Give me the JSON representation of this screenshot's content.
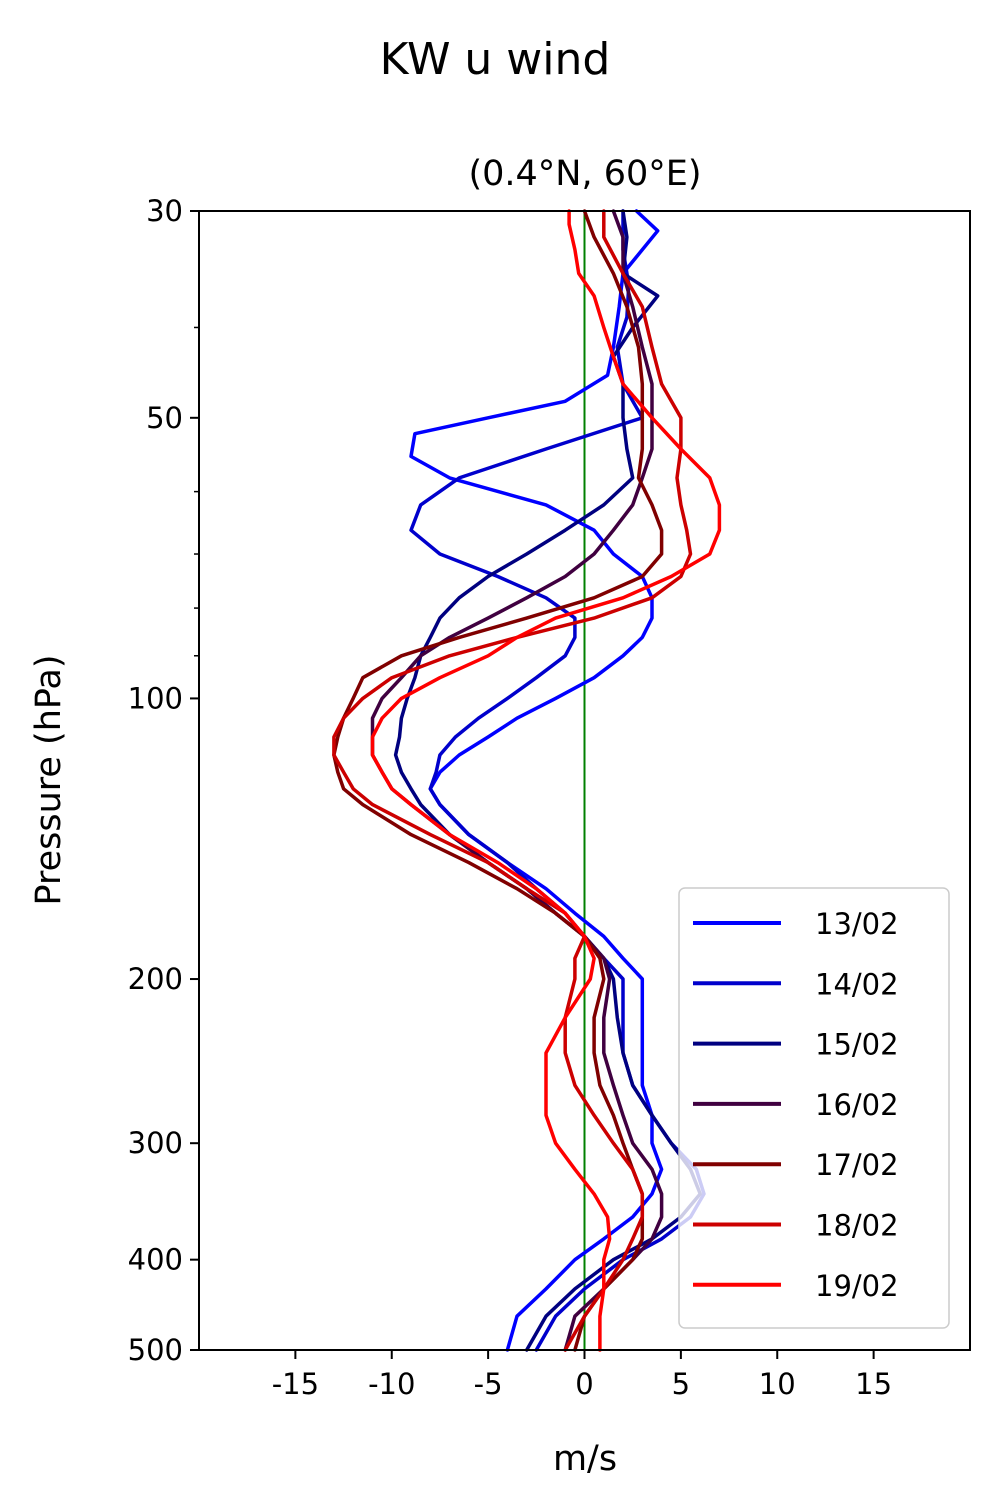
{
  "chart_data": {
    "type": "line",
    "title": "KW u wind",
    "subtitle": "(0.4°N, 60°E)",
    "xlabel": "m/s",
    "ylabel": "Pressure (hPa)",
    "xlim": [
      -20,
      20
    ],
    "ylim": [
      500,
      30
    ],
    "yscale": "log",
    "x_ticks": [
      -15,
      -10,
      -5,
      0,
      5,
      10,
      15
    ],
    "x_tick_labels": [
      "-15",
      "-10",
      "-5",
      "0",
      "5",
      "10",
      "15"
    ],
    "y_ticks": [
      30,
      50,
      100,
      200,
      300,
      400,
      500
    ],
    "y_tick_labels": [
      "30",
      "50",
      "100",
      "200",
      "300",
      "400",
      "500"
    ],
    "y_minor_ticks": [
      40,
      60,
      70,
      80,
      90
    ],
    "reference_line": {
      "x": 0,
      "color": "#008000"
    },
    "legend_position": "lower-right",
    "series": [
      {
        "name": "13/02",
        "color": "#0000ff",
        "p": [
          30,
          31.5,
          35,
          38,
          42,
          45,
          48,
          50,
          52,
          55,
          58,
          62,
          66,
          70,
          74,
          78,
          82,
          86,
          90,
          95,
          100,
          105,
          110,
          115,
          120,
          125,
          130,
          140,
          150,
          160,
          170,
          180,
          190,
          200,
          220,
          240,
          260,
          280,
          300,
          320,
          340,
          360,
          380,
          400,
          430,
          460,
          500
        ],
        "u": [
          2.7,
          3.8,
          2.0,
          1.8,
          1.5,
          1.2,
          -1.0,
          -5.0,
          -8.8,
          -9.0,
          -7.0,
          -2.0,
          0.5,
          1.5,
          3.0,
          3.5,
          3.5,
          3.0,
          2.0,
          0.5,
          -1.5,
          -3.5,
          -5.0,
          -6.5,
          -7.5,
          -8.0,
          -7.5,
          -6.0,
          -4.0,
          -2.0,
          -0.5,
          1.0,
          2.0,
          3.0,
          3.0,
          3.0,
          3.0,
          3.5,
          3.5,
          4.0,
          3.5,
          2.5,
          1.0,
          -0.5,
          -2.0,
          -3.5,
          -4.0
        ]
      },
      {
        "name": "14/02",
        "color": "#0000cc",
        "p": [
          30,
          33,
          36,
          39,
          42,
          46,
          50,
          54,
          58,
          62,
          66,
          70,
          74,
          78,
          82,
          86,
          90,
          95,
          100,
          105,
          110,
          115,
          120,
          125,
          130,
          140,
          150,
          160,
          170,
          180,
          190,
          200,
          220,
          240,
          260,
          280,
          300,
          320,
          340,
          360,
          380,
          400,
          430,
          460,
          500
        ],
        "u": [
          2.0,
          2.0,
          2.3,
          2.2,
          1.7,
          2.0,
          3.0,
          -2.0,
          -6.5,
          -8.5,
          -9.0,
          -7.5,
          -4.5,
          -2.0,
          -0.5,
          -0.5,
          -1.0,
          -2.5,
          -4.0,
          -5.5,
          -6.7,
          -7.5,
          -7.7,
          -8.0,
          -7.5,
          -6.0,
          -4.0,
          -2.5,
          -1.0,
          0.0,
          1.0,
          2.0,
          2.0,
          2.0,
          2.5,
          3.5,
          4.5,
          5.8,
          6.2,
          5.5,
          4.0,
          2.0,
          0.0,
          -1.5,
          -2.5
        ]
      },
      {
        "name": "15/02",
        "color": "#000080",
        "p": [
          30,
          32,
          35,
          37,
          40,
          43,
          46,
          50,
          54,
          58,
          62,
          66,
          70,
          74,
          78,
          82,
          86,
          90,
          95,
          100,
          105,
          110,
          115,
          120,
          125,
          130,
          140,
          150,
          160,
          170,
          180,
          190,
          200,
          220,
          240,
          260,
          280,
          300,
          320,
          340,
          360,
          380,
          400,
          430,
          460,
          500
        ],
        "u": [
          2.0,
          2.2,
          2.0,
          3.8,
          2.5,
          1.5,
          2.0,
          2.0,
          2.2,
          2.5,
          1.0,
          -1.0,
          -3.0,
          -5.0,
          -6.5,
          -7.5,
          -8.0,
          -8.5,
          -8.8,
          -9.2,
          -9.5,
          -9.6,
          -9.8,
          -9.5,
          -9.0,
          -8.5,
          -7.0,
          -5.0,
          -3.0,
          -1.5,
          0.0,
          1.0,
          1.5,
          1.7,
          2.0,
          2.5,
          3.5,
          4.5,
          5.5,
          6.0,
          5.0,
          3.5,
          1.5,
          -0.5,
          -2.0,
          -3.0
        ]
      },
      {
        "name": "16/02",
        "color": "#400040",
        "p": [
          30,
          32,
          35,
          38,
          42,
          46,
          50,
          54,
          58,
          62,
          66,
          70,
          74,
          78,
          82,
          86,
          90,
          95,
          100,
          105,
          110,
          115,
          120,
          125,
          130,
          140,
          150,
          160,
          170,
          180,
          190,
          200,
          220,
          240,
          260,
          280,
          300,
          320,
          340,
          360,
          380,
          400,
          430,
          460,
          500
        ],
        "u": [
          1.5,
          2.0,
          2.0,
          2.5,
          3.0,
          3.5,
          3.5,
          3.5,
          3.0,
          2.5,
          1.5,
          0.5,
          -1.0,
          -3.0,
          -5.0,
          -7.0,
          -8.5,
          -9.5,
          -10.5,
          -11.0,
          -11.0,
          -11.0,
          -10.5,
          -10.0,
          -9.0,
          -7.0,
          -5.0,
          -3.0,
          -1.5,
          0.0,
          1.0,
          1.3,
          1.0,
          1.0,
          1.5,
          2.0,
          2.5,
          3.5,
          4.0,
          4.0,
          3.5,
          2.5,
          1.0,
          -0.5,
          -1.0
        ]
      },
      {
        "name": "17/02",
        "color": "#800000",
        "p": [
          30,
          32,
          35,
          38,
          42,
          46,
          50,
          54,
          58,
          62,
          66,
          70,
          74,
          78,
          82,
          86,
          90,
          95,
          100,
          105,
          110,
          115,
          120,
          125,
          130,
          140,
          150,
          160,
          170,
          180,
          190,
          200,
          220,
          240,
          260,
          280,
          300,
          320,
          340,
          360,
          380,
          400,
          430,
          460,
          500
        ],
        "u": [
          0.0,
          0.5,
          1.5,
          2.2,
          2.8,
          3.0,
          3.0,
          3.0,
          2.8,
          3.5,
          4.0,
          4.0,
          3.0,
          0.5,
          -3.0,
          -6.5,
          -9.5,
          -11.5,
          -12.0,
          -12.5,
          -12.8,
          -13.0,
          -12.8,
          -12.5,
          -11.5,
          -9.0,
          -6.0,
          -3.5,
          -1.5,
          0.0,
          0.8,
          1.0,
          0.5,
          0.5,
          0.8,
          1.5,
          2.0,
          2.5,
          3.0,
          3.0,
          3.0,
          2.5,
          1.0,
          0.0,
          -0.5
        ]
      },
      {
        "name": "18/02",
        "color": "#cc0000",
        "p": [
          30,
          32,
          35,
          38,
          42,
          46,
          50,
          54,
          58,
          62,
          66,
          70,
          74,
          78,
          82,
          86,
          90,
          95,
          100,
          105,
          110,
          115,
          120,
          125,
          130,
          140,
          150,
          160,
          170,
          180,
          190,
          200,
          220,
          240,
          260,
          280,
          300,
          320,
          340,
          360,
          380,
          400,
          430,
          460,
          500
        ],
        "u": [
          1.0,
          1.0,
          2.0,
          3.0,
          3.5,
          4.0,
          5.0,
          5.0,
          4.8,
          5.0,
          5.3,
          5.5,
          5.0,
          3.5,
          0.5,
          -3.5,
          -7.0,
          -10.0,
          -11.5,
          -12.5,
          -13.0,
          -13.0,
          -12.5,
          -12.0,
          -11.0,
          -8.0,
          -5.0,
          -3.0,
          -1.0,
          0.0,
          -0.5,
          -0.5,
          -1.0,
          -1.0,
          -0.5,
          0.5,
          1.5,
          2.5,
          3.0,
          3.0,
          2.5,
          2.0,
          1.0,
          0.0,
          -1.0
        ]
      },
      {
        "name": "19/02",
        "color": "#ff0000",
        "p": [
          30,
          31,
          33,
          35,
          37,
          40,
          43,
          46,
          50,
          54,
          58,
          62,
          66,
          70,
          74,
          78,
          82,
          86,
          90,
          95,
          100,
          105,
          110,
          115,
          120,
          125,
          130,
          140,
          150,
          160,
          170,
          180,
          190,
          200,
          220,
          240,
          260,
          280,
          300,
          320,
          340,
          360,
          380,
          400,
          430,
          460,
          500
        ],
        "u": [
          -0.8,
          -0.8,
          -0.5,
          -0.3,
          0.5,
          1.0,
          1.5,
          2.0,
          3.5,
          5.0,
          6.5,
          7.0,
          7.0,
          6.5,
          4.5,
          2.0,
          -1.5,
          -3.5,
          -5.0,
          -7.5,
          -9.5,
          -10.5,
          -11.0,
          -11.0,
          -10.5,
          -10.0,
          -9.0,
          -7.0,
          -4.5,
          -2.5,
          -1.0,
          0.0,
          0.5,
          0.3,
          -1.0,
          -2.0,
          -2.0,
          -2.0,
          -1.5,
          -0.5,
          0.5,
          1.2,
          1.3,
          1.0,
          1.0,
          0.8,
          0.8
        ]
      }
    ]
  }
}
